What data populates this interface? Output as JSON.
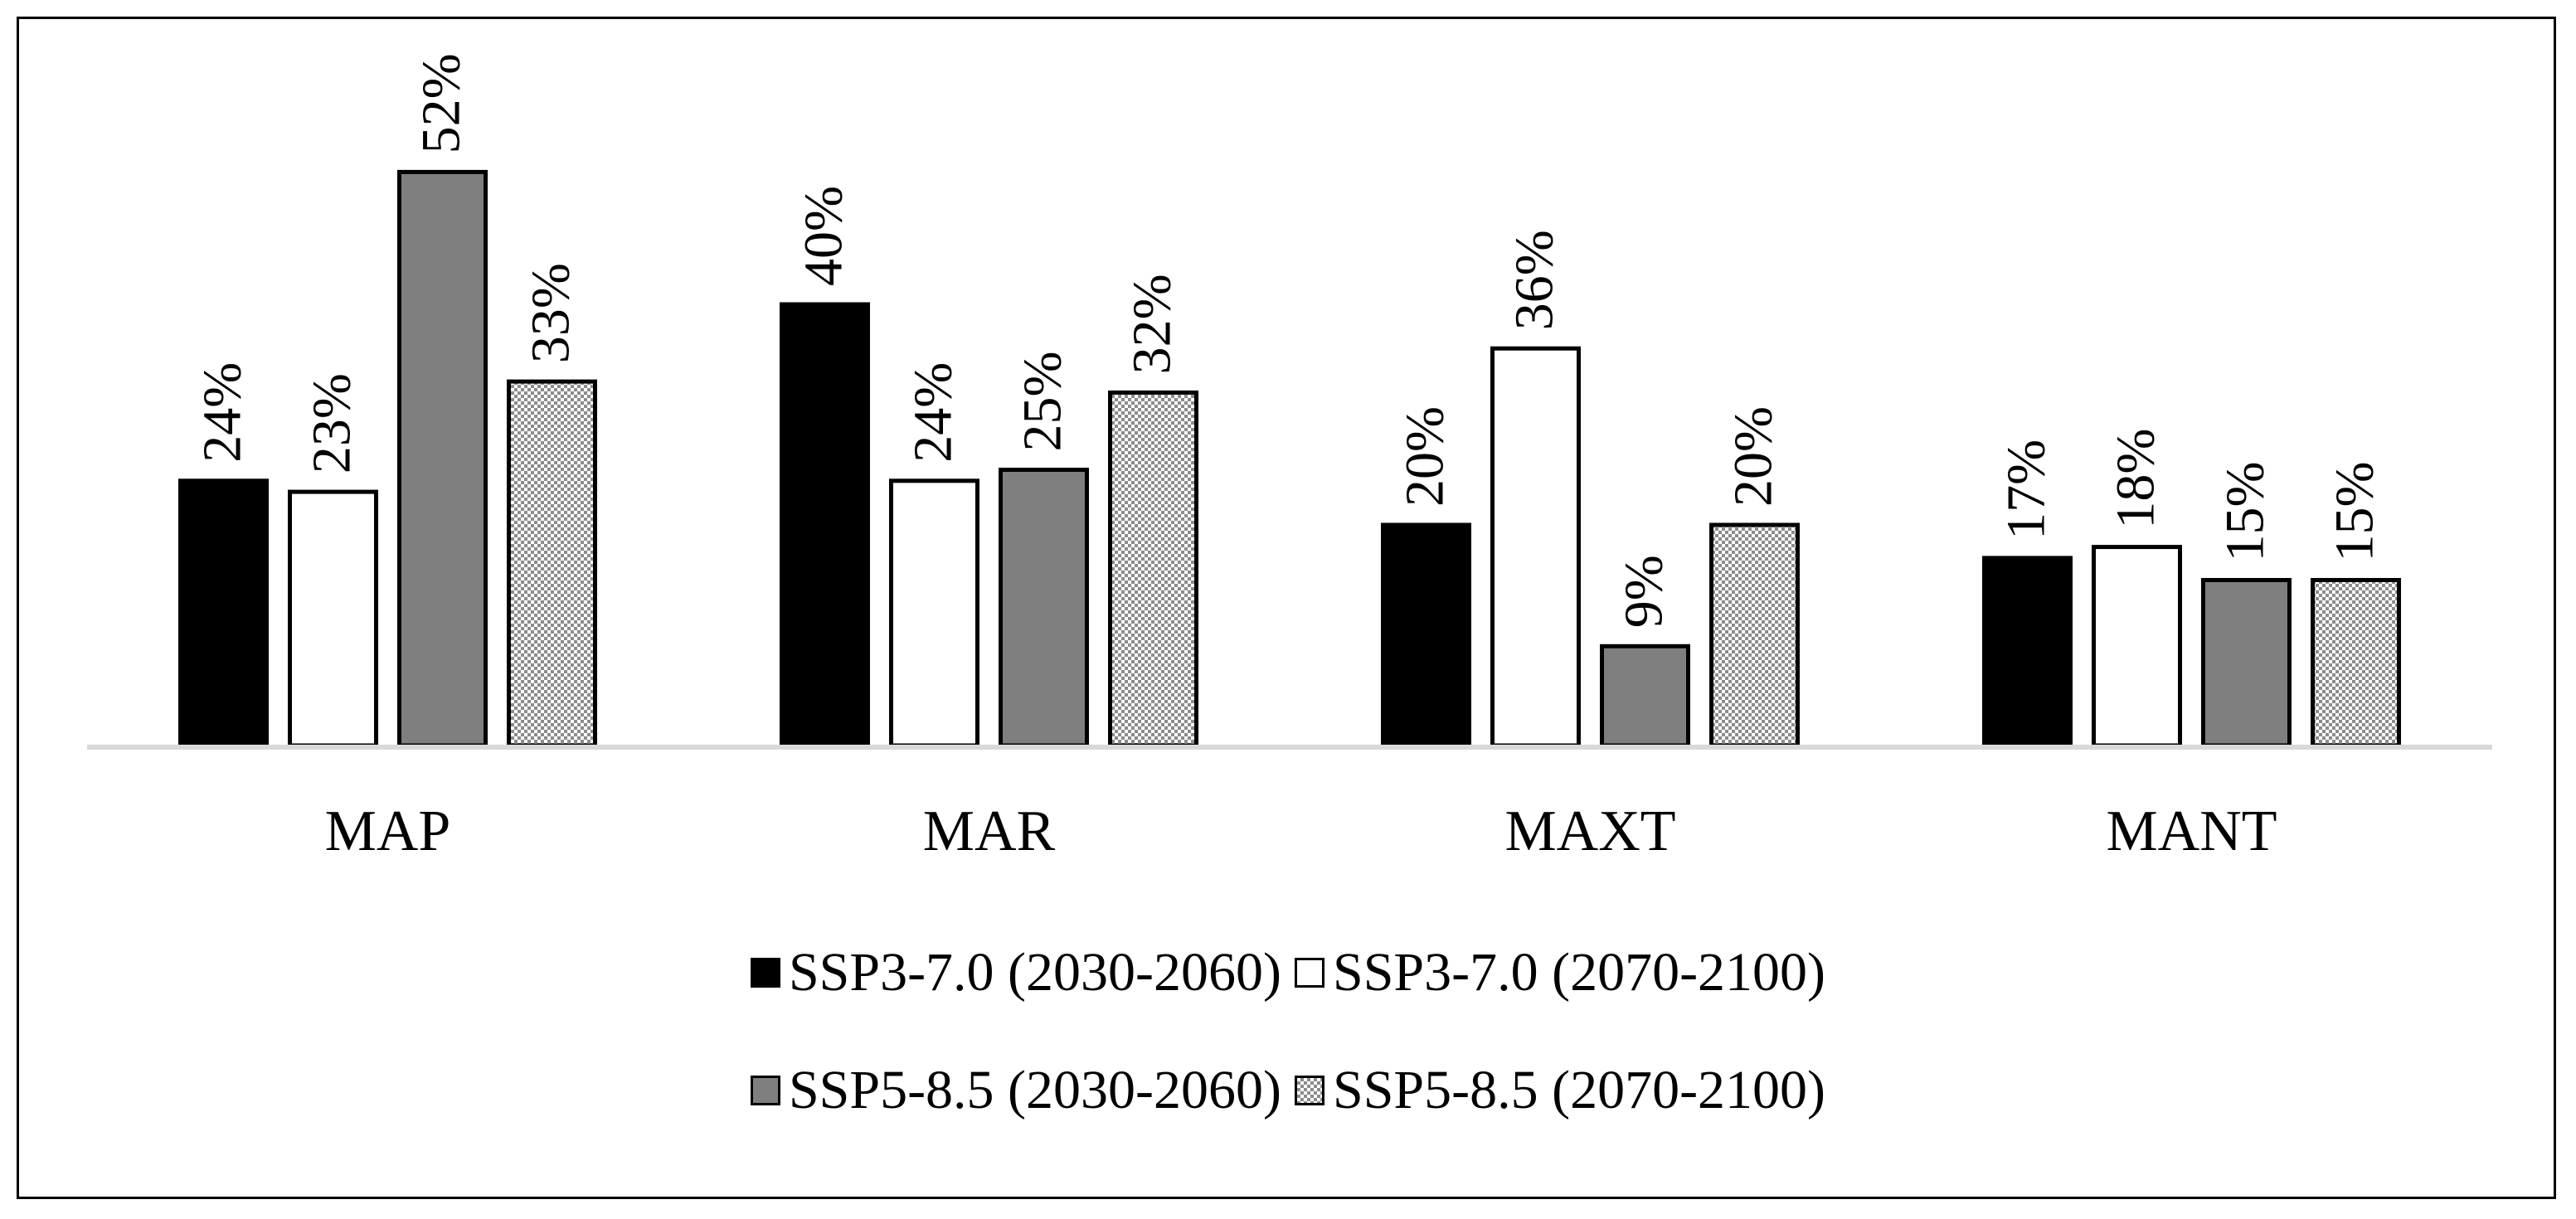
{
  "chart_data": {
    "type": "bar",
    "title": "",
    "xlabel": "",
    "ylabel": "",
    "ylim": [
      0,
      52
    ],
    "categories": [
      "MAP",
      "MAR",
      "MAXT",
      "MANT"
    ],
    "series": [
      {
        "name": "SSP3-7.0 (2030-2060)",
        "values": [
          24,
          40,
          20,
          17
        ],
        "labels": [
          "24%",
          "40%",
          "20%",
          "17%"
        ],
        "fill": "black"
      },
      {
        "name": "SSP3-7.0 (2070-2100)",
        "values": [
          23,
          24,
          36,
          18
        ],
        "labels": [
          "23%",
          "24%",
          "36%",
          "18%"
        ],
        "fill": "white"
      },
      {
        "name": "SSP5-8.5 (2030-2060)",
        "values": [
          52,
          25,
          9,
          15
        ],
        "labels": [
          "52%",
          "25%",
          "9%",
          "15%"
        ],
        "fill": "gray"
      },
      {
        "name": "SSP5-8.5 (2070-2100)",
        "values": [
          33,
          32,
          20,
          15
        ],
        "labels": [
          "33%",
          "32%",
          "20%",
          "15%"
        ],
        "fill": "checker"
      }
    ],
    "legend_position": "bottom",
    "grid": false
  },
  "colors": {
    "black": "#000000",
    "white": "#ffffff",
    "gray": "#7f7f7f",
    "checker_light": "#ffffff",
    "checker_dark": "#8c8c8c",
    "baseline": "#d9d9d9",
    "stroke": "#000000"
  }
}
